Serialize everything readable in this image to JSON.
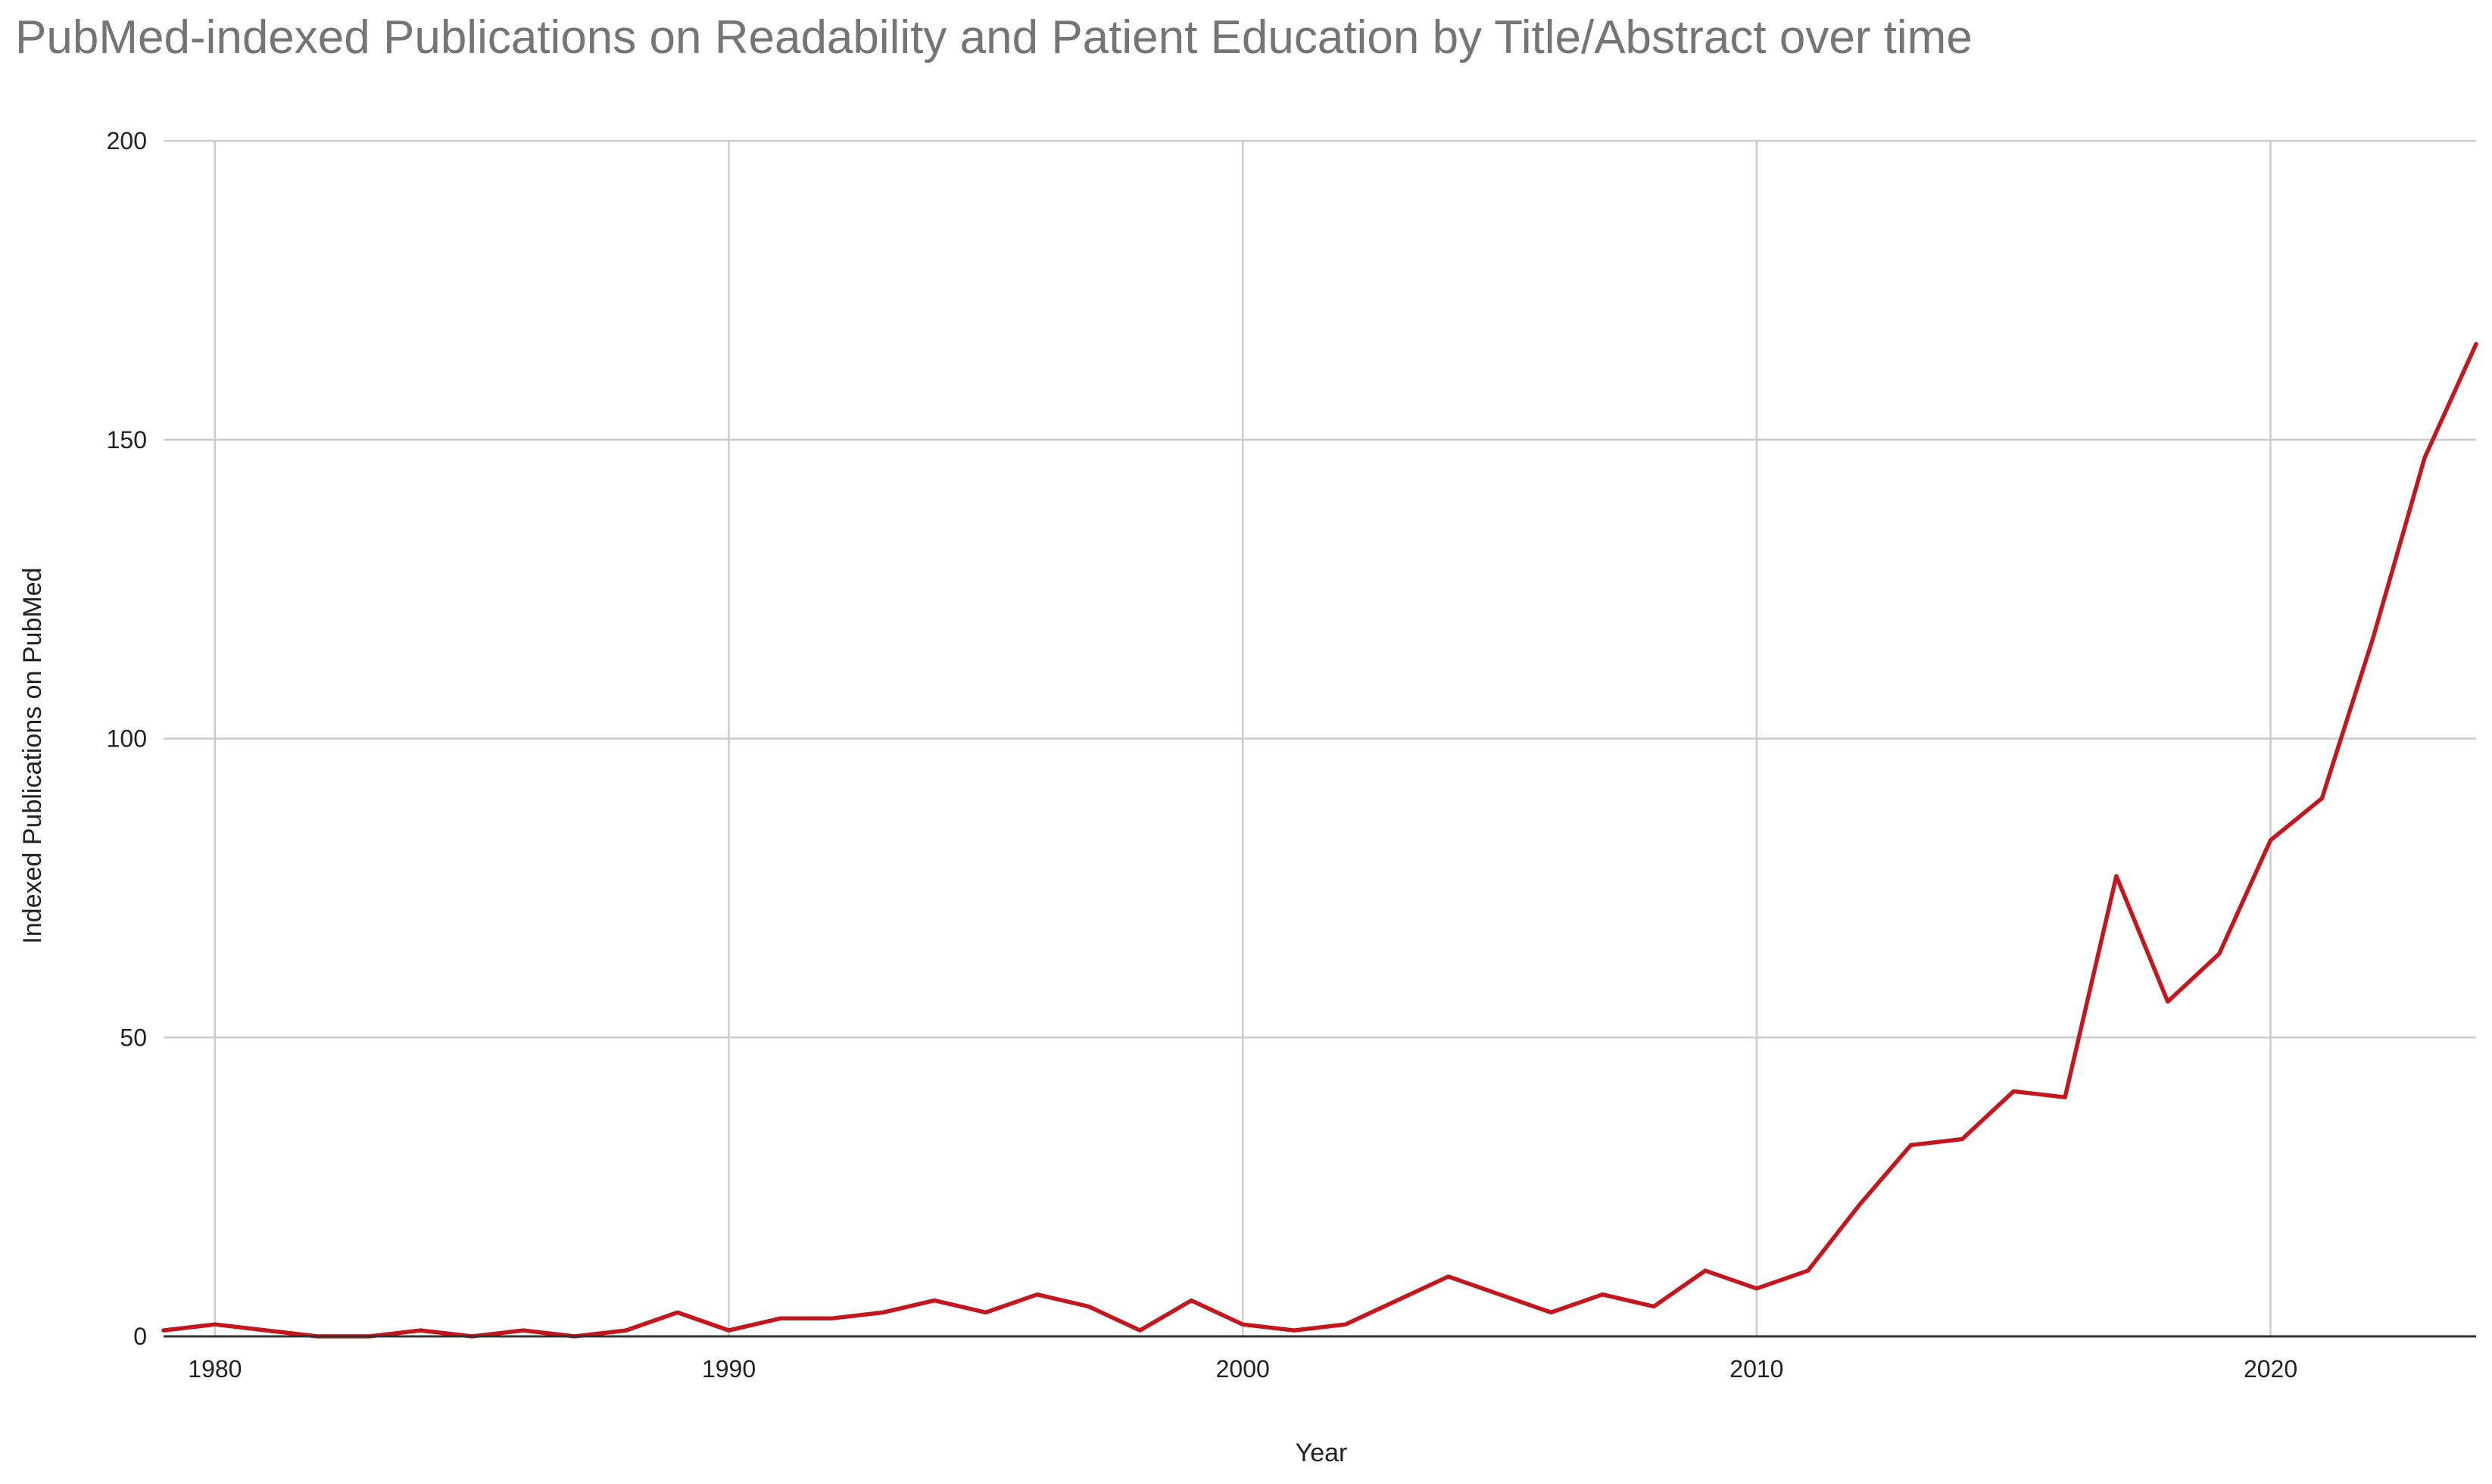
{
  "chart_data": {
    "type": "line",
    "title": "PubMed-indexed Publications on Readability and Patient Education by Title/Abstract over time",
    "xlabel": "Year",
    "ylabel": "Indexed Publications on PubMed",
    "xlim": [
      1979,
      2024
    ],
    "ylim": [
      0,
      200
    ],
    "x_ticks": [
      1980,
      1990,
      2000,
      2010,
      2020
    ],
    "y_ticks": [
      0,
      50,
      100,
      150,
      200
    ],
    "grid": true,
    "legend": "none",
    "colors": {
      "series": "#c5161d",
      "grid": "#cccccc",
      "title": "#757575"
    },
    "series": [
      {
        "name": "Indexed Publications on PubMed",
        "x": [
          1979,
          1980,
          1981,
          1982,
          1983,
          1984,
          1985,
          1986,
          1987,
          1988,
          1989,
          1990,
          1991,
          1992,
          1993,
          1994,
          1995,
          1996,
          1997,
          1998,
          1999,
          2000,
          2001,
          2002,
          2003,
          2004,
          2005,
          2006,
          2007,
          2008,
          2009,
          2010,
          2011,
          2012,
          2013,
          2014,
          2015,
          2016,
          2017,
          2018,
          2019,
          2020,
          2021,
          2022,
          2023,
          2024
        ],
        "values": [
          1,
          2,
          1,
          0,
          0,
          1,
          0,
          1,
          0,
          1,
          4,
          1,
          3,
          3,
          4,
          6,
          4,
          7,
          5,
          1,
          6,
          2,
          1,
          2,
          6,
          10,
          7,
          4,
          7,
          5,
          11,
          8,
          11,
          22,
          32,
          33,
          41,
          40,
          77,
          56,
          64,
          83,
          90,
          117,
          147,
          166
        ]
      }
    ]
  }
}
